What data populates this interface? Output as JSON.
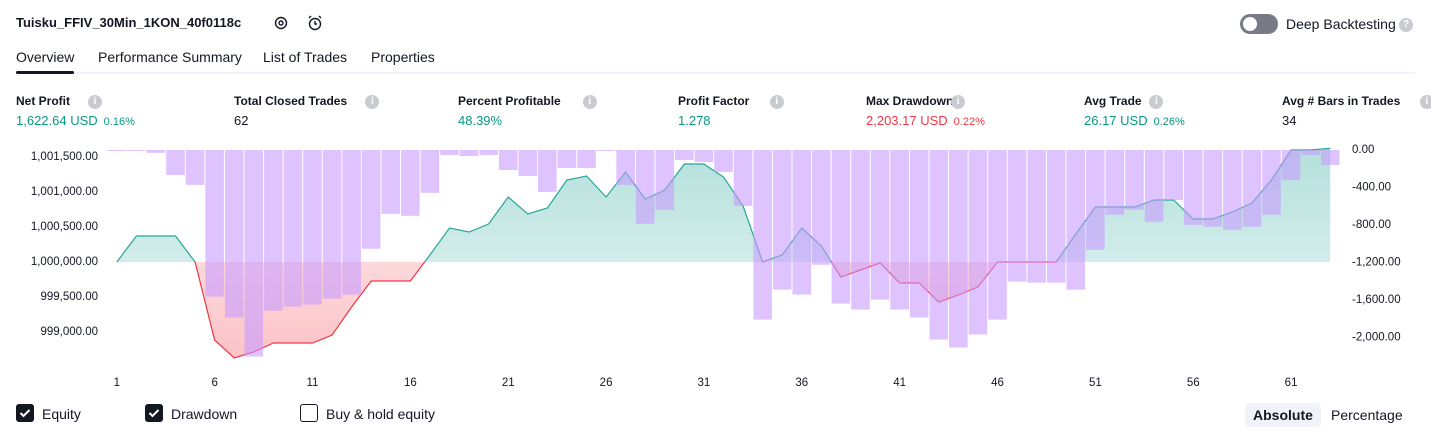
{
  "header": {
    "title": "Tuisku_FFIV_30Min_1KON_40f0118c",
    "toggle_label": "Deep Backtesting"
  },
  "tabs": [
    "Overview",
    "Performance Summary",
    "List of Trades",
    "Properties"
  ],
  "metrics": [
    {
      "label": "Net Profit",
      "value": "1,622.64 USD",
      "percent": "0.16%",
      "color": "#089981"
    },
    {
      "label": "Total Closed Trades",
      "value": "62",
      "color": "#131722"
    },
    {
      "label": "Percent Profitable",
      "value": "48.39%",
      "color": "#089981"
    },
    {
      "label": "Profit Factor",
      "value": "1.278",
      "color": "#089981"
    },
    {
      "label": "Max Drawdown",
      "value": "2,203.17 USD",
      "percent": "0.22%",
      "color": "#f23645"
    },
    {
      "label": "Avg Trade",
      "value": "26.17 USD",
      "percent": "0.26%",
      "color": "#089981"
    },
    {
      "label": "Avg # Bars in Trades",
      "value": "34",
      "color": "#131722"
    }
  ],
  "chart_data": {
    "type": "combo",
    "x": [
      1,
      2,
      3,
      4,
      5,
      6,
      7,
      8,
      9,
      10,
      11,
      12,
      13,
      14,
      15,
      16,
      17,
      18,
      19,
      20,
      21,
      22,
      23,
      24,
      25,
      26,
      27,
      28,
      29,
      30,
      31,
      32,
      33,
      34,
      35,
      36,
      37,
      38,
      39,
      40,
      41,
      42,
      43,
      44,
      45,
      46,
      47,
      48,
      49,
      50,
      51,
      52,
      53,
      54,
      55,
      56,
      57,
      58,
      59,
      60,
      61,
      62,
      63
    ],
    "xlim": [
      0.5,
      63.5
    ],
    "xticks": [
      1,
      6,
      11,
      16,
      21,
      26,
      31,
      36,
      41,
      46,
      51,
      56,
      61
    ],
    "ylim": [
      998600,
      1001600
    ],
    "yticks": [
      {
        "value": 999000,
        "label": "999,000.00"
      },
      {
        "value": 999500,
        "label": "999,500.00"
      },
      {
        "value": 1000000,
        "label": "1,000,000.00"
      },
      {
        "value": 1000500,
        "label": "1,000,500.00"
      },
      {
        "value": 1001000,
        "label": "1,001,000.00"
      },
      {
        "value": 1001500,
        "label": "1,001,500.00"
      }
    ],
    "y2lim": [
      -2240,
      0
    ],
    "y2ticks": [
      {
        "value": -2000,
        "label": "-2,000.00"
      },
      {
        "value": -1600,
        "label": "-1,600.00"
      },
      {
        "value": -1200,
        "label": "-1,200.00"
      },
      {
        "value": -800,
        "label": "-800.00"
      },
      {
        "value": -400,
        "label": "-400.00"
      },
      {
        "value": 0,
        "label": "0.00"
      }
    ],
    "baseline": 1000000,
    "series": [
      {
        "name": "Equity",
        "type": "line",
        "color": "#26a69a",
        "negative_color": "#f23645",
        "values": [
          1000000,
          1000371,
          1000371,
          1000371,
          1000000,
          998886,
          998629,
          998714,
          998843,
          998843,
          998843,
          998957,
          999357,
          999729,
          999729,
          999729,
          1000100,
          1000486,
          1000429,
          1000543,
          1000929,
          1000686,
          1000771,
          1001171,
          1001229,
          1000929,
          1001286,
          1000900,
          1001029,
          1001400,
          1001400,
          1001214,
          1000800,
          1000000,
          1000100,
          1000486,
          1000229,
          999786,
          999886,
          999986,
          999700,
          999700,
          999429,
          999529,
          999643,
          1000000,
          1000000,
          1000000,
          1000000,
          1000400,
          1000786,
          1000786,
          1000786,
          1000886,
          1000886,
          1000614,
          1000614,
          1000714,
          1000843,
          1001171,
          1001600,
          1001600,
          1001623
        ]
      },
      {
        "name": "Drawdown",
        "type": "bar",
        "axis": "y2",
        "color": "#c89bff",
        "values": [
          -5,
          -10,
          -30,
          -266,
          -372,
          -1564,
          -1787,
          -2203,
          -1713,
          -1670,
          -1649,
          -1585,
          -1543,
          -1053,
          -681,
          -702,
          -457,
          -53,
          -64,
          -53,
          -213,
          -277,
          -447,
          -192,
          -192,
          0,
          -372,
          -787,
          -638,
          -106,
          -128,
          -234,
          -596,
          -1809,
          -1490,
          -1543,
          -1224,
          -1638,
          -1702,
          -1596,
          -1702,
          -1787,
          -2022,
          -2107,
          -1968,
          -1809,
          -1404,
          -1415,
          -1415,
          -1490,
          -1064,
          -691,
          -638,
          -766,
          -532,
          -798,
          -819,
          -851,
          -819,
          -691,
          -319,
          -53,
          -160
        ]
      }
    ]
  },
  "legend_extra": "Buy & hold equity",
  "buttons": [
    "Absolute",
    "Percentage"
  ]
}
